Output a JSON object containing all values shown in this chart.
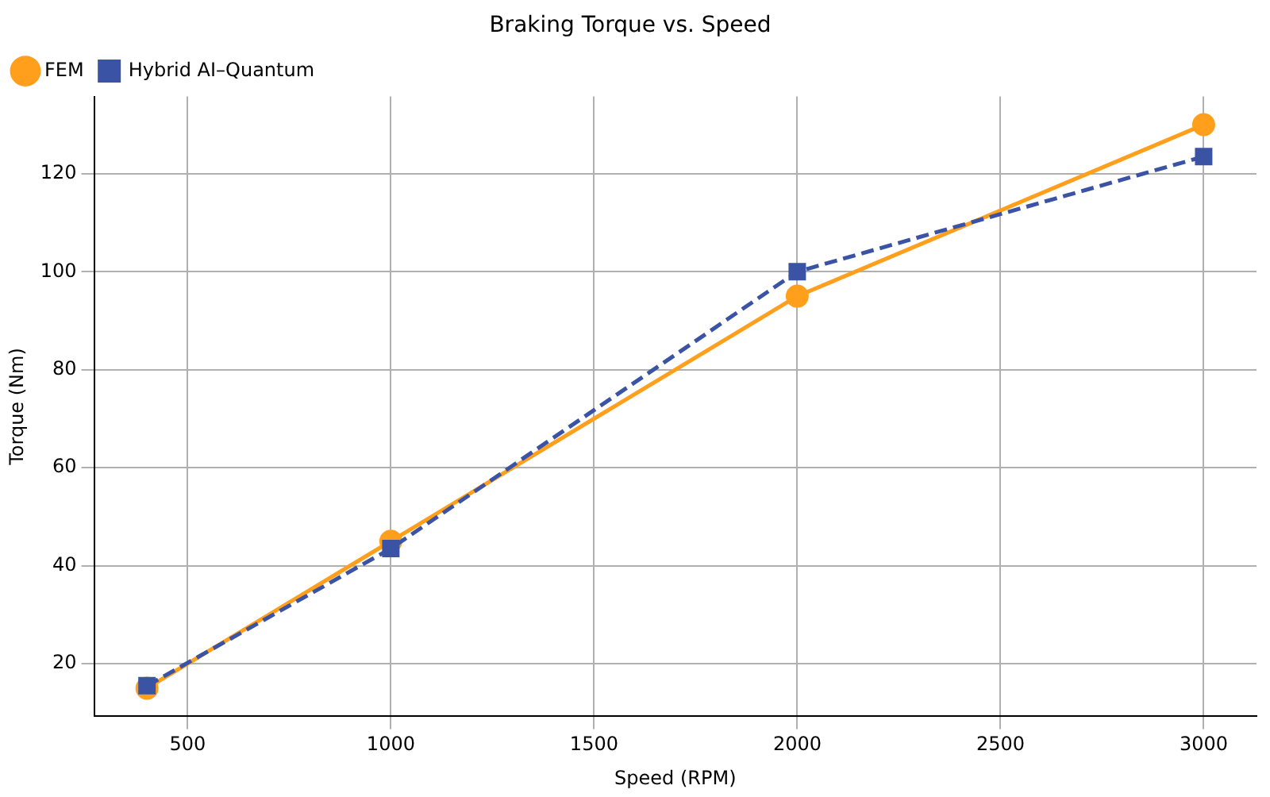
{
  "chart_data": {
    "type": "line",
    "title": "Braking Torque vs. Speed",
    "xlabel": "Speed (RPM)",
    "ylabel": "Torque (Nm)",
    "x": [
      400,
      1000,
      2000,
      3000
    ],
    "series": [
      {
        "name": "FEM",
        "color": "#ff9f1c",
        "values": [
          15,
          45,
          95,
          130
        ],
        "marker": "circle",
        "line_style": "solid"
      },
      {
        "name": "Hybrid AI–Quantum",
        "color": "#3a53a4",
        "values": [
          15.5,
          43.5,
          100,
          123.5
        ],
        "marker": "square",
        "line_style": "dashed"
      }
    ],
    "xlim": [
      270,
      3130
    ],
    "xticks": [
      500,
      1000,
      1500,
      2000,
      2500,
      3000
    ],
    "ylim": [
      9.25,
      135.75
    ],
    "yticks": [
      20,
      40,
      60,
      80,
      100,
      120
    ],
    "grid": true,
    "legend": "top left"
  }
}
